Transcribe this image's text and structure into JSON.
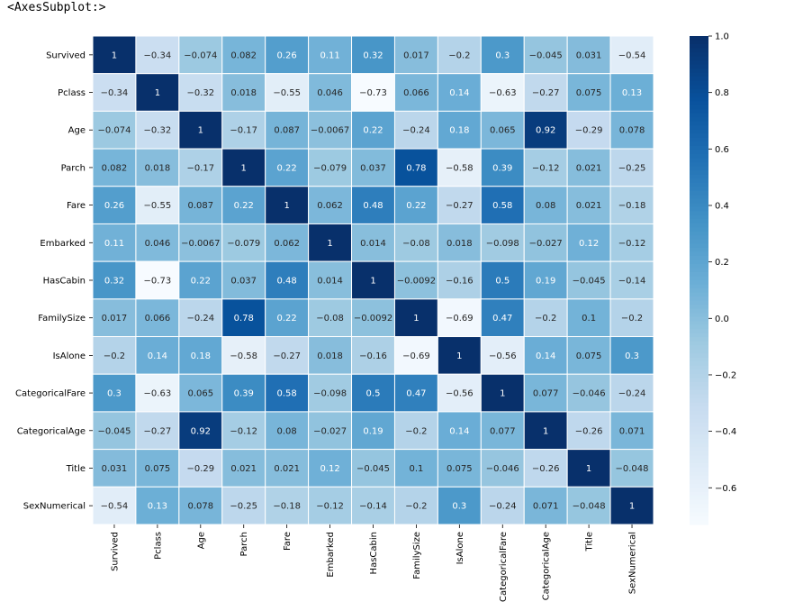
{
  "output_repr": "<AxesSubplot:>",
  "chart_data": {
    "type": "heatmap",
    "colormap": "Blues",
    "labels": [
      "Survived",
      "Pclass",
      "Age",
      "Parch",
      "Fare",
      "Embarked",
      "HasCabin",
      "FamilySize",
      "IsAlone",
      "CategoricalFare",
      "CategoricalAge",
      "Title",
      "SexNumerical"
    ],
    "values": [
      [
        1,
        -0.34,
        -0.074,
        0.082,
        0.26,
        0.11,
        0.32,
        0.017,
        -0.2,
        0.3,
        -0.045,
        0.031,
        -0.54
      ],
      [
        -0.34,
        1,
        -0.32,
        0.018,
        -0.55,
        0.046,
        -0.73,
        0.066,
        0.14,
        -0.63,
        -0.27,
        0.075,
        0.13
      ],
      [
        -0.074,
        -0.32,
        1,
        -0.17,
        0.087,
        -0.0067,
        0.22,
        -0.24,
        0.18,
        0.065,
        0.92,
        -0.29,
        0.078
      ],
      [
        0.082,
        0.018,
        -0.17,
        1,
        0.22,
        -0.079,
        0.037,
        0.78,
        -0.58,
        0.39,
        -0.12,
        0.021,
        -0.25
      ],
      [
        0.26,
        -0.55,
        0.087,
        0.22,
        1,
        0.062,
        0.48,
        0.22,
        -0.27,
        0.58,
        0.08,
        0.021,
        -0.18
      ],
      [
        0.11,
        0.046,
        -0.0067,
        -0.079,
        0.062,
        1,
        0.014,
        -0.08,
        0.018,
        -0.098,
        -0.027,
        0.12,
        -0.12
      ],
      [
        0.32,
        -0.73,
        0.22,
        0.037,
        0.48,
        0.014,
        1,
        -0.0092,
        -0.16,
        0.5,
        0.19,
        -0.045,
        -0.14
      ],
      [
        0.017,
        0.066,
        -0.24,
        0.78,
        0.22,
        -0.08,
        -0.0092,
        1,
        -0.69,
        0.47,
        -0.2,
        0.1,
        -0.2
      ],
      [
        -0.2,
        0.14,
        0.18,
        -0.58,
        -0.27,
        0.018,
        -0.16,
        -0.69,
        1,
        -0.56,
        0.14,
        0.075,
        0.3
      ],
      [
        0.3,
        -0.63,
        0.065,
        0.39,
        0.58,
        -0.098,
        0.5,
        0.47,
        -0.56,
        1,
        0.077,
        -0.046,
        -0.24
      ],
      [
        -0.045,
        -0.27,
        0.92,
        -0.12,
        0.08,
        -0.027,
        0.19,
        -0.2,
        0.14,
        0.077,
        1,
        -0.26,
        0.071
      ],
      [
        0.031,
        0.075,
        -0.29,
        0.021,
        0.021,
        0.12,
        -0.045,
        0.1,
        0.075,
        -0.046,
        -0.26,
        1,
        -0.048
      ],
      [
        -0.54,
        0.13,
        0.078,
        -0.25,
        -0.18,
        -0.12,
        -0.14,
        -0.2,
        0.3,
        -0.24,
        0.071,
        -0.048,
        1
      ]
    ],
    "vmin": -0.73,
    "vmax": 1,
    "colorbar_ticks": [
      "1.0",
      "0.8",
      "0.6",
      "0.4",
      "0.2",
      "0.0",
      "−0.2",
      "−0.4",
      "−0.6"
    ],
    "colorbar_tick_values": [
      1.0,
      0.8,
      0.6,
      0.4,
      0.2,
      0.0,
      -0.2,
      -0.4,
      -0.6
    ],
    "annotated": true,
    "linecolor": "#ffffff"
  }
}
